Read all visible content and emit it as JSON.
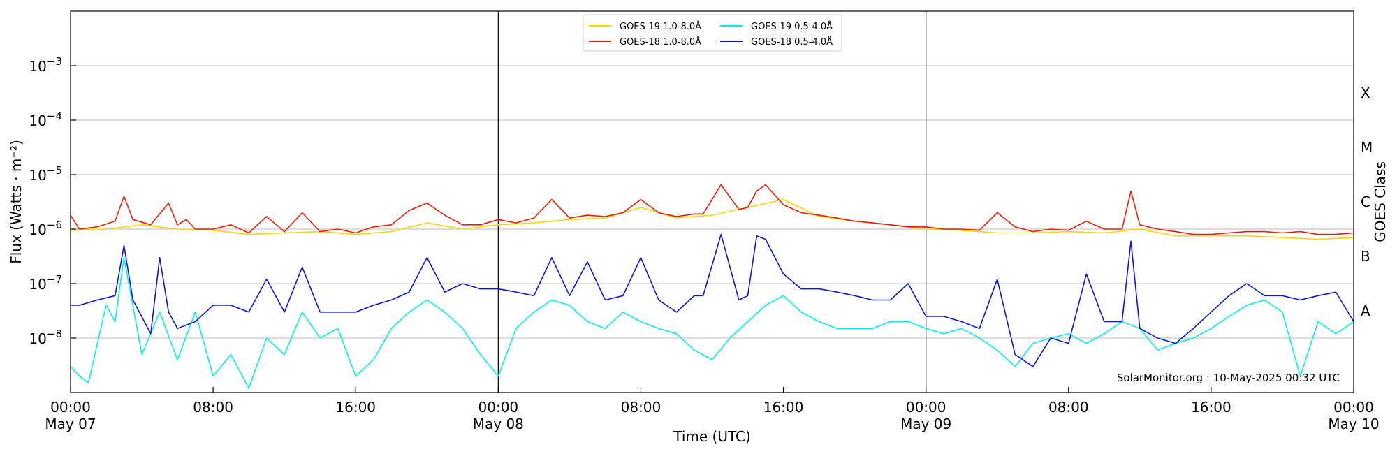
{
  "chart_data": {
    "type": "line",
    "xlabel": "Time (UTC)",
    "ylabel": "Flux (Watts · m⁻²)",
    "right_label": "GOES Class",
    "credit": "SolarMonitor.org : 10-May-2025 00:32 UTC",
    "x_range": [
      "2025-05-07T00:00",
      "2025-05-10T00:00"
    ],
    "ylim": [
      1e-09,
      0.01
    ],
    "y_scale": "log",
    "grid": "horizontal",
    "legend_position": "top-center",
    "x_ticks": [
      {
        "t": "2025-05-07T00:00",
        "line1": "00:00",
        "line2": "May 07"
      },
      {
        "t": "2025-05-07T08:00",
        "line1": "08:00",
        "line2": ""
      },
      {
        "t": "2025-05-07T16:00",
        "line1": "16:00",
        "line2": ""
      },
      {
        "t": "2025-05-08T00:00",
        "line1": "00:00",
        "line2": "May 08"
      },
      {
        "t": "2025-05-08T08:00",
        "line1": "08:00",
        "line2": ""
      },
      {
        "t": "2025-05-08T16:00",
        "line1": "16:00",
        "line2": ""
      },
      {
        "t": "2025-05-09T00:00",
        "line1": "00:00",
        "line2": "May 09"
      },
      {
        "t": "2025-05-09T08:00",
        "line1": "08:00",
        "line2": ""
      },
      {
        "t": "2025-05-09T16:00",
        "line1": "16:00",
        "line2": ""
      },
      {
        "t": "2025-05-10T00:00",
        "line1": "00:00",
        "line2": "May 10"
      }
    ],
    "y_ticks": [
      {
        "value": 1e-08,
        "base": "10",
        "exp": "−8"
      },
      {
        "value": 1e-07,
        "base": "10",
        "exp": "−7"
      },
      {
        "value": 1e-06,
        "base": "10",
        "exp": "−6"
      },
      {
        "value": 1e-05,
        "base": "10",
        "exp": "−5"
      },
      {
        "value": 0.0001,
        "base": "10",
        "exp": "−4"
      },
      {
        "value": 0.001,
        "base": "10",
        "exp": "−3"
      }
    ],
    "day_boundaries": [
      "2025-05-08T00:00",
      "2025-05-09T00:00"
    ],
    "goes_classes": [
      {
        "label": "A",
        "value": 3.16e-08
      },
      {
        "label": "B",
        "value": 3.16e-07
      },
      {
        "label": "C",
        "value": 3.16e-06
      },
      {
        "label": "M",
        "value": 3.16e-05
      },
      {
        "label": "X",
        "value": 0.000316
      }
    ],
    "series": [
      {
        "name": "GOES-19 1.0-8.0Å",
        "color": "#ffd400",
        "x": [
          "2025-05-07T00:00",
          "2025-05-07T02:00",
          "2025-05-07T04:00",
          "2025-05-07T06:00",
          "2025-05-07T08:00",
          "2025-05-07T10:00",
          "2025-05-07T12:00",
          "2025-05-07T14:00",
          "2025-05-07T16:00",
          "2025-05-07T18:00",
          "2025-05-07T20:00",
          "2025-05-07T22:00",
          "2025-05-08T00:00",
          "2025-05-08T02:00",
          "2025-05-08T04:00",
          "2025-05-08T06:00",
          "2025-05-08T08:00",
          "2025-05-08T10:00",
          "2025-05-08T12:00",
          "2025-05-08T14:00",
          "2025-05-08T16:00",
          "2025-05-08T18:00",
          "2025-05-08T20:00",
          "2025-05-08T22:00",
          "2025-05-09T00:00",
          "2025-05-09T02:00",
          "2025-05-09T04:00",
          "2025-05-09T06:00",
          "2025-05-09T08:00",
          "2025-05-09T10:00",
          "2025-05-09T12:00",
          "2025-05-09T14:00",
          "2025-05-09T16:00",
          "2025-05-09T18:00",
          "2025-05-09T20:00",
          "2025-05-09T22:00",
          "2025-05-10T00:00"
        ],
        "values": [
          9.5e-07,
          1e-06,
          1.2e-06,
          1e-06,
          9.5e-07,
          8e-07,
          8.5e-07,
          9e-07,
          8e-07,
          9e-07,
          1.3e-06,
          1e-06,
          1.2e-06,
          1.3e-06,
          1.5e-06,
          1.6e-06,
          2.5e-06,
          1.6e-06,
          1.8e-06,
          2.5e-06,
          3.5e-06,
          1.7e-06,
          1.4e-06,
          1.2e-06,
          1e-06,
          9.5e-07,
          8.5e-07,
          8.5e-07,
          9e-07,
          8.5e-07,
          1e-06,
          7.5e-07,
          7.5e-07,
          7.5e-07,
          7e-07,
          6.5e-07,
          7e-07
        ]
      },
      {
        "name": "GOES-18 1.0-8.0Å",
        "color": "#ee1c00",
        "x": [
          "2025-05-07T00:00",
          "2025-05-07T00:30",
          "2025-05-07T01:30",
          "2025-05-07T02:30",
          "2025-05-07T03:00",
          "2025-05-07T03:30",
          "2025-05-07T04:30",
          "2025-05-07T05:30",
          "2025-05-07T06:00",
          "2025-05-07T06:30",
          "2025-05-07T07:00",
          "2025-05-07T08:00",
          "2025-05-07T09:00",
          "2025-05-07T10:00",
          "2025-05-07T11:00",
          "2025-05-07T12:00",
          "2025-05-07T13:00",
          "2025-05-07T14:00",
          "2025-05-07T15:00",
          "2025-05-07T16:00",
          "2025-05-07T17:00",
          "2025-05-07T18:00",
          "2025-05-07T19:00",
          "2025-05-07T20:00",
          "2025-05-07T21:00",
          "2025-05-07T22:00",
          "2025-05-07T23:00",
          "2025-05-08T00:00",
          "2025-05-08T01:00",
          "2025-05-08T02:00",
          "2025-05-08T03:00",
          "2025-05-08T04:00",
          "2025-05-08T05:00",
          "2025-05-08T06:00",
          "2025-05-08T07:00",
          "2025-05-08T08:00",
          "2025-05-08T09:00",
          "2025-05-08T10:00",
          "2025-05-08T11:00",
          "2025-05-08T11:30",
          "2025-05-08T12:30",
          "2025-05-08T13:30",
          "2025-05-08T14:00",
          "2025-05-08T14:30",
          "2025-05-08T15:00",
          "2025-05-08T16:00",
          "2025-05-08T17:00",
          "2025-05-08T18:00",
          "2025-05-08T19:00",
          "2025-05-08T20:00",
          "2025-05-08T21:00",
          "2025-05-08T22:00",
          "2025-05-08T23:00",
          "2025-05-09T00:00",
          "2025-05-09T01:00",
          "2025-05-09T02:00",
          "2025-05-09T03:00",
          "2025-05-09T04:00",
          "2025-05-09T05:00",
          "2025-05-09T06:00",
          "2025-05-09T07:00",
          "2025-05-09T08:00",
          "2025-05-09T09:00",
          "2025-05-09T10:00",
          "2025-05-09T11:00",
          "2025-05-09T11:30",
          "2025-05-09T12:00",
          "2025-05-09T13:00",
          "2025-05-09T14:00",
          "2025-05-09T15:00",
          "2025-05-09T16:00",
          "2025-05-09T17:00",
          "2025-05-09T18:00",
          "2025-05-09T19:00",
          "2025-05-09T20:00",
          "2025-05-09T21:00",
          "2025-05-09T22:00",
          "2025-05-09T23:00",
          "2025-05-10T00:00"
        ],
        "values": [
          1.8e-06,
          1e-06,
          1.1e-06,
          1.4e-06,
          4e-06,
          1.5e-06,
          1.2e-06,
          3e-06,
          1.2e-06,
          1.5e-06,
          1e-06,
          1e-06,
          1.2e-06,
          8.5e-07,
          1.7e-06,
          9e-07,
          2e-06,
          9e-07,
          1e-06,
          8.5e-07,
          1.1e-06,
          1.2e-06,
          2.2e-06,
          3e-06,
          1.8e-06,
          1.2e-06,
          1.2e-06,
          1.5e-06,
          1.3e-06,
          1.6e-06,
          3.5e-06,
          1.6e-06,
          1.8e-06,
          1.7e-06,
          2e-06,
          3.5e-06,
          2e-06,
          1.7e-06,
          1.9e-06,
          1.9e-06,
          6.5e-06,
          2.3e-06,
          2.5e-06,
          5e-06,
          6.5e-06,
          2.8e-06,
          2e-06,
          1.8e-06,
          1.6e-06,
          1.4e-06,
          1.3e-06,
          1.2e-06,
          1.1e-06,
          1.1e-06,
          1e-06,
          1e-06,
          9.5e-07,
          2e-06,
          1.1e-06,
          9e-07,
          1e-06,
          9.5e-07,
          1.4e-06,
          1e-06,
          1e-06,
          5e-06,
          1.2e-06,
          1e-06,
          9e-07,
          8e-07,
          8e-07,
          8.5e-07,
          9e-07,
          9e-07,
          8.5e-07,
          9e-07,
          8e-07,
          8e-07,
          8.5e-07
        ]
      },
      {
        "name": "GOES-19 0.5-4.0Å",
        "color": "#00f0f0",
        "x": [
          "2025-05-07T00:00",
          "2025-05-07T00:30",
          "2025-05-07T01:00",
          "2025-05-07T02:00",
          "2025-05-07T02:30",
          "2025-05-07T03:00",
          "2025-05-07T04:00",
          "2025-05-07T05:00",
          "2025-05-07T06:00",
          "2025-05-07T07:00",
          "2025-05-07T08:00",
          "2025-05-07T09:00",
          "2025-05-07T10:00",
          "2025-05-07T11:00",
          "2025-05-07T12:00",
          "2025-05-07T13:00",
          "2025-05-07T14:00",
          "2025-05-07T15:00",
          "2025-05-07T16:00",
          "2025-05-07T17:00",
          "2025-05-07T18:00",
          "2025-05-07T19:00",
          "2025-05-07T20:00",
          "2025-05-07T21:00",
          "2025-05-07T22:00",
          "2025-05-07T23:00",
          "2025-05-08T00:00",
          "2025-05-08T01:00",
          "2025-05-08T02:00",
          "2025-05-08T03:00",
          "2025-05-08T04:00",
          "2025-05-08T05:00",
          "2025-05-08T06:00",
          "2025-05-08T07:00",
          "2025-05-08T08:00",
          "2025-05-08T09:00",
          "2025-05-08T10:00",
          "2025-05-08T11:00",
          "2025-05-08T12:00",
          "2025-05-08T13:00",
          "2025-05-08T14:00",
          "2025-05-08T15:00",
          "2025-05-08T16:00",
          "2025-05-08T17:00",
          "2025-05-08T18:00",
          "2025-05-08T19:00",
          "2025-05-08T20:00",
          "2025-05-08T21:00",
          "2025-05-08T22:00",
          "2025-05-08T23:00",
          "2025-05-09T00:00",
          "2025-05-09T01:00",
          "2025-05-09T02:00",
          "2025-05-09T03:00",
          "2025-05-09T04:00",
          "2025-05-09T05:00",
          "2025-05-09T06:00",
          "2025-05-09T07:00",
          "2025-05-09T08:00",
          "2025-05-09T09:00",
          "2025-05-09T10:00",
          "2025-05-09T11:00",
          "2025-05-09T12:00",
          "2025-05-09T13:00",
          "2025-05-09T14:00",
          "2025-05-09T15:00",
          "2025-05-09T16:00",
          "2025-05-09T17:00",
          "2025-05-09T18:00",
          "2025-05-09T19:00",
          "2025-05-09T20:00",
          "2025-05-09T21:00",
          "2025-05-09T22:00",
          "2025-05-09T23:00",
          "2025-05-10T00:00"
        ],
        "values": [
          3e-09,
          2e-09,
          1.5e-09,
          4e-08,
          2e-08,
          3e-07,
          5e-09,
          3e-08,
          4e-09,
          3e-08,
          2e-09,
          5e-09,
          1.2e-09,
          1e-08,
          5e-09,
          3e-08,
          1e-08,
          1.5e-08,
          2e-09,
          4e-09,
          1.5e-08,
          3e-08,
          5e-08,
          3e-08,
          1.5e-08,
          5e-09,
          2e-09,
          1.5e-08,
          3e-08,
          5e-08,
          4e-08,
          2e-08,
          1.5e-08,
          3e-08,
          2e-08,
          1.5e-08,
          1.2e-08,
          6e-09,
          4e-09,
          1e-08,
          2e-08,
          4e-08,
          6e-08,
          3e-08,
          2e-08,
          1.5e-08,
          1.5e-08,
          1.5e-08,
          2e-08,
          2e-08,
          1.5e-08,
          1.2e-08,
          1.5e-08,
          1e-08,
          6e-09,
          3e-09,
          8e-09,
          1e-08,
          1.2e-08,
          8e-09,
          1.2e-08,
          2e-08,
          1.5e-08,
          6e-09,
          8e-09,
          1e-08,
          1.5e-08,
          2.5e-08,
          4e-08,
          5e-08,
          3e-08,
          2e-09,
          2e-08,
          1.2e-08,
          2e-08
        ]
      },
      {
        "name": "GOES-18 0.5-4.0Å",
        "color": "#0a16e0",
        "x": [
          "2025-05-07T00:00",
          "2025-05-07T00:30",
          "2025-05-07T01:30",
          "2025-05-07T02:30",
          "2025-05-07T03:00",
          "2025-05-07T03:30",
          "2025-05-07T04:30",
          "2025-05-07T05:00",
          "2025-05-07T05:30",
          "2025-05-07T06:00",
          "2025-05-07T07:00",
          "2025-05-07T08:00",
          "2025-05-07T09:00",
          "2025-05-07T10:00",
          "2025-05-07T11:00",
          "2025-05-07T12:00",
          "2025-05-07T13:00",
          "2025-05-07T14:00",
          "2025-05-07T15:00",
          "2025-05-07T16:00",
          "2025-05-07T17:00",
          "2025-05-07T18:00",
          "2025-05-07T19:00",
          "2025-05-07T20:00",
          "2025-05-07T21:00",
          "2025-05-07T22:00",
          "2025-05-07T23:00",
          "2025-05-08T00:00",
          "2025-05-08T01:00",
          "2025-05-08T02:00",
          "2025-05-08T03:00",
          "2025-05-08T04:00",
          "2025-05-08T05:00",
          "2025-05-08T06:00",
          "2025-05-08T07:00",
          "2025-05-08T08:00",
          "2025-05-08T09:00",
          "2025-05-08T10:00",
          "2025-05-08T11:00",
          "2025-05-08T11:30",
          "2025-05-08T12:30",
          "2025-05-08T13:30",
          "2025-05-08T14:00",
          "2025-05-08T14:30",
          "2025-05-08T15:00",
          "2025-05-08T16:00",
          "2025-05-08T17:00",
          "2025-05-08T18:00",
          "2025-05-08T19:00",
          "2025-05-08T20:00",
          "2025-05-08T21:00",
          "2025-05-08T22:00",
          "2025-05-08T23:00",
          "2025-05-09T00:00",
          "2025-05-09T01:00",
          "2025-05-09T02:00",
          "2025-05-09T03:00",
          "2025-05-09T04:00",
          "2025-05-09T05:00",
          "2025-05-09T06:00",
          "2025-05-09T07:00",
          "2025-05-09T08:00",
          "2025-05-09T09:00",
          "2025-05-09T10:00",
          "2025-05-09T11:00",
          "2025-05-09T11:30",
          "2025-05-09T12:00",
          "2025-05-09T13:00",
          "2025-05-09T14:00",
          "2025-05-09T15:00",
          "2025-05-09T16:00",
          "2025-05-09T17:00",
          "2025-05-09T18:00",
          "2025-05-09T19:00",
          "2025-05-09T20:00",
          "2025-05-09T21:00",
          "2025-05-09T22:00",
          "2025-05-09T23:00",
          "2025-05-10T00:00"
        ],
        "values": [
          4e-08,
          4e-08,
          5e-08,
          6e-08,
          5e-07,
          5e-08,
          1.2e-08,
          3e-07,
          3e-08,
          1.5e-08,
          2e-08,
          4e-08,
          4e-08,
          3e-08,
          1.2e-07,
          3e-08,
          2e-07,
          3e-08,
          3e-08,
          3e-08,
          4e-08,
          5e-08,
          7e-08,
          3e-07,
          7e-08,
          1e-07,
          8e-08,
          8e-08,
          7e-08,
          6e-08,
          3e-07,
          6e-08,
          2.5e-07,
          5e-08,
          6e-08,
          3e-07,
          5e-08,
          3e-08,
          6e-08,
          6e-08,
          8e-07,
          5e-08,
          6e-08,
          7.5e-07,
          6.5e-07,
          1.5e-07,
          8e-08,
          8e-08,
          7e-08,
          6e-08,
          5e-08,
          5e-08,
          1e-07,
          2.5e-08,
          2.5e-08,
          2e-08,
          1.5e-08,
          1.2e-07,
          5e-09,
          3e-09,
          1e-08,
          8e-09,
          1.5e-07,
          2e-08,
          2e-08,
          6e-07,
          1.5e-08,
          1e-08,
          8e-09,
          1.5e-08,
          3e-08,
          6e-08,
          1e-07,
          6e-08,
          6e-08,
          5e-08,
          6e-08,
          7e-08,
          2e-08
        ]
      }
    ]
  }
}
